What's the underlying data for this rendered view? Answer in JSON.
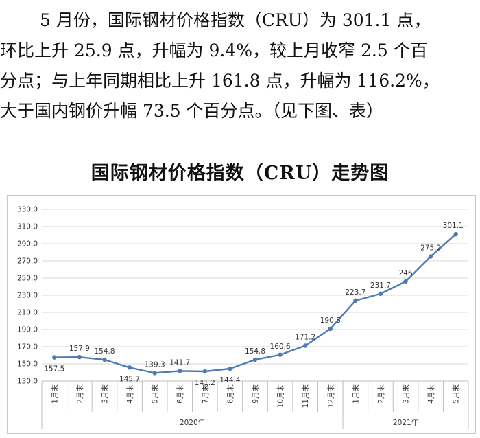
{
  "text": {
    "lines": [
      "5 月份，国际钢材价格指数（CRU）为 301.1 点，",
      "环比上升 25.9 点，升幅为 9.4%，较上月收窄 2.5 个百",
      "分点；与上年同期相比上升 161.8 点，升幅为 116.2%，",
      "大于国内钢价升幅 73.5 个百分点。（见下图、表）"
    ]
  },
  "chart_data": {
    "type": "line",
    "title": "国际钢材价格指数（CRU）走势图",
    "categories": [
      "1月末",
      "2月末",
      "3月末",
      "4月末",
      "5月末",
      "6月末",
      "7月末",
      "8月末",
      "9月末",
      "10月末",
      "11月末",
      "12月末",
      "1月末",
      "2月末",
      "3月末",
      "4月末",
      "5月末"
    ],
    "values": [
      157.5,
      157.9,
      154.8,
      145.7,
      139.3,
      141.7,
      141.2,
      144.4,
      154.8,
      160.6,
      171.2,
      190.8,
      223.7,
      231.7,
      246,
      275.2,
      301.1
    ],
    "data_labels": [
      "157.5",
      "157.9",
      "154.8",
      "145.7",
      "139.3",
      "141.7",
      "141.2",
      "144.4",
      "154.8",
      "160.6",
      "171.2",
      "190.8",
      "223.7",
      "231.7",
      "246",
      "275.2",
      "301.1"
    ],
    "groups": [
      {
        "label": "2020年",
        "count": 12
      },
      {
        "label": "2021年",
        "count": 5
      }
    ],
    "ylim": [
      130,
      330
    ],
    "yticks": [
      "130.0",
      "150.0",
      "170.0",
      "190.0",
      "210.0",
      "230.0",
      "250.0",
      "270.0",
      "290.0",
      "310.0",
      "330.0"
    ],
    "grid": true,
    "line_color": "#4f7bb4",
    "grid_color": "#d9d9d9"
  }
}
